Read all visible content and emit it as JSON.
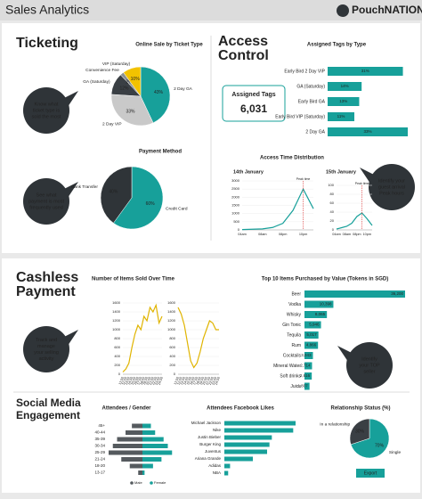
{
  "header": {
    "title": "Sales Analytics",
    "brand": "PouchNATION"
  },
  "sections": {
    "ticketing": {
      "title": "Ticketing"
    },
    "access": {
      "title": [
        "Access",
        "Control"
      ],
      "tags_label": "Assigned Tags",
      "tags_value": "6,031",
      "time_title": "Access Time Distribution"
    },
    "cashless": {
      "title": [
        "Cashless",
        "Payment"
      ],
      "items_title": "Number of Items Sold Over Time"
    },
    "social": {
      "title": [
        "Social Media",
        "Engagement"
      ]
    },
    "export": "Export"
  },
  "notes": [
    [
      "Know what",
      "ticket type is",
      "sold the most"
    ],
    [
      "See what",
      "payment is most",
      "frequently used"
    ],
    [
      "Identify your",
      "guest arrival",
      "Peak hours"
    ],
    [
      "Track and",
      "manage",
      "your selling",
      "activity"
    ],
    [
      "Identify",
      "your TOP",
      "seller"
    ]
  ],
  "chart_data": [
    {
      "type": "pie",
      "title": "Online Sale by Ticket Type",
      "categories": [
        "2 Day GA",
        "2 Day VIP",
        "GA (Saturday)",
        "Convenience Fee",
        "VIP (Saturday)"
      ],
      "values": [
        43,
        33,
        12,
        2,
        10
      ],
      "value_labels": [
        "43%",
        "33%",
        "12%",
        "2%",
        "10%"
      ],
      "colors": [
        "#17a09a",
        "#c9c9c9",
        "#3a3f44",
        "#8a8f93",
        "#f2c200"
      ]
    },
    {
      "type": "pie",
      "title": "Payment Method",
      "categories": [
        "Credit Card",
        "Bank Transfer"
      ],
      "values": [
        60,
        40
      ],
      "value_labels": [
        "60%",
        "40%"
      ],
      "colors": [
        "#17a09a",
        "#2f3438"
      ]
    },
    {
      "type": "bar",
      "title": "Assigned Tags by Type",
      "categories": [
        "Early Bird 2 Day VIP",
        "GA (Saturday)",
        "Early Bird GA",
        "Early Bird VIP (Saturday)",
        "2 Day GA"
      ],
      "values": [
        31,
        14,
        13,
        11,
        33
      ],
      "value_labels": [
        "31%",
        "14%",
        "13%",
        "11%",
        "33%"
      ],
      "color": "#17a09a"
    },
    {
      "type": "line",
      "subtitle": "14th January",
      "categories": [
        "04am",
        null,
        "08am",
        null,
        "08pm",
        null,
        "10pm",
        null
      ],
      "values": [
        20,
        40,
        60,
        150,
        400,
        1200,
        2500,
        1300
      ],
      "ylim": [
        0,
        3000
      ],
      "yticks": [
        0,
        500,
        1000,
        1500,
        2000,
        2500,
        3000
      ],
      "color": "#17a09a",
      "annotations": [
        "Peak time"
      ]
    },
    {
      "type": "line",
      "subtitle": "15th January",
      "categories": [
        "04am",
        null,
        "08am",
        null,
        "08pm",
        null,
        "10pm",
        null
      ],
      "values": [
        2,
        5,
        8,
        15,
        30,
        38,
        25,
        10
      ],
      "ylim": [
        0,
        100
      ],
      "yticks": [
        0,
        20,
        40,
        60,
        80,
        100
      ],
      "color": "#17a09a",
      "annotations": [
        "Peak time"
      ]
    },
    {
      "type": "line",
      "categories": [
        "11:00",
        "12:00",
        "13:00",
        "14:00",
        "15:00",
        "16:00",
        "17:00",
        "18:00",
        "19:00",
        "20:00",
        "21:00",
        "22:00",
        "23:00",
        "24:00"
      ],
      "values": [
        50,
        120,
        250,
        600,
        900,
        1100,
        1000,
        1300,
        1200,
        1500,
        1400,
        1550,
        1150,
        1300
      ],
      "ylim": [
        0,
        1600
      ],
      "yticks": [
        0,
        200,
        400,
        600,
        800,
        1000,
        1200,
        1400,
        1600
      ],
      "color": "#e0b400"
    },
    {
      "type": "line",
      "categories": [
        "11:00",
        "12:00",
        "13:00",
        "14:00",
        "15:00",
        "16:00",
        "17:00",
        "18:00",
        "19:00",
        "20:00",
        "21:00",
        "22:00",
        "23:00",
        "24:00"
      ],
      "values": [
        1500,
        1350,
        1100,
        700,
        300,
        150,
        250,
        500,
        800,
        1000,
        1200,
        1150,
        1000,
        1000
      ],
      "ylim": [
        0,
        1600
      ],
      "yticks": [
        0,
        200,
        400,
        600,
        800,
        1000,
        1200,
        1400,
        1600
      ],
      "color": "#e0b400"
    },
    {
      "type": "bar",
      "title": "Top 10 Items Purchased by Value (Tokens in SGD)",
      "categories": [
        "Beer",
        "Vodka",
        "Whisky",
        "Gin Tonic",
        "Tequila",
        "Rum",
        "Cocktails",
        "Mineral Water",
        "Soft drinks",
        "Juice"
      ],
      "values": [
        36200,
        10398,
        8065,
        5946,
        5017,
        4866,
        3043,
        2714,
        2616,
        1807
      ],
      "value_labels": [
        "36,200",
        "10,398",
        "8,065",
        "5,946",
        "5,017",
        "4,866",
        "3,043",
        "2,714",
        "2,616",
        "1,807"
      ],
      "color": "#17a09a"
    },
    {
      "type": "bar",
      "layout": "butterfly",
      "title": "Attendees / Gender",
      "categories": [
        "45+",
        "40-44",
        "35-39",
        "30-34",
        "25-29",
        "21-24",
        "18-20",
        "13-17"
      ],
      "series": [
        {
          "name": "Male",
          "color": "#555a5e",
          "values": [
            5,
            8,
            12,
            14,
            16,
            10,
            6,
            2
          ]
        },
        {
          "name": "Female",
          "color": "#17a09a",
          "values": [
            4,
            6,
            10,
            12,
            14,
            9,
            5,
            1
          ]
        }
      ]
    },
    {
      "type": "bar",
      "title": "Attendees Facebook Likes",
      "categories": [
        "Michael Jackson",
        "Nike",
        "Justin Bieber",
        "Burger King",
        "Juventus",
        "Ariana Grande",
        "Adidas",
        "NBA"
      ],
      "values": [
        150,
        145,
        100,
        95,
        90,
        60,
        12,
        8
      ],
      "color": "#17a09a"
    },
    {
      "type": "pie",
      "title": "Relationship Status (%)",
      "categories": [
        "Single",
        "In a relationship"
      ],
      "values": [
        70,
        30
      ],
      "value_labels": [
        "70%",
        "30%"
      ],
      "colors": [
        "#17a09a",
        "#3a3f44"
      ]
    }
  ]
}
